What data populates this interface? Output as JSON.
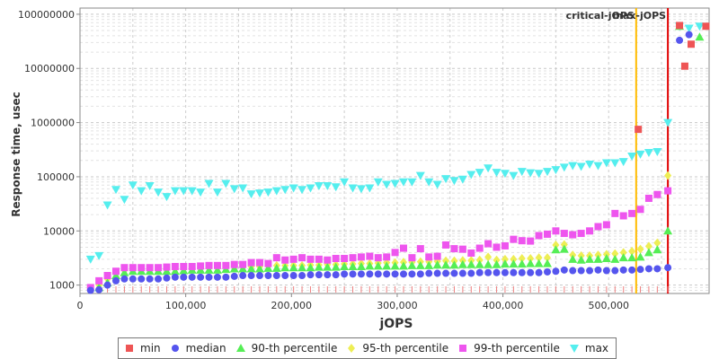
{
  "chart_data": {
    "type": "scatter",
    "xlabel": "jOPS",
    "ylabel": "Response time, usec",
    "xlim": [
      0,
      595000
    ],
    "ylim": [
      700,
      130000000
    ],
    "y_scale": "log",
    "grid": true,
    "legend_position": "bottom",
    "x_ticks": [
      0,
      100000,
      200000,
      300000,
      400000,
      500000
    ],
    "x_tick_labels": [
      "0",
      "100,000",
      "200,000",
      "300,000",
      "400,000",
      "500,000"
    ],
    "y_ticks": [
      1000,
      10000,
      100000,
      1000000,
      10000000,
      100000000
    ],
    "y_tick_labels": [
      "1000",
      "10000",
      "100000",
      "1000000",
      "10000000",
      "100000000"
    ],
    "reference_lines": [
      {
        "label": "critical-jOPS",
        "x": 526000,
        "color": "#ffbb00"
      },
      {
        "label": "max-jOPS",
        "x": 556000,
        "color": "#e00000"
      }
    ],
    "series": [
      {
        "name": "min",
        "color": "#ee5555",
        "marker": "square",
        "x": [
          528000,
          567000,
          572000,
          578000,
          592000
        ],
        "y": [
          750000,
          62000000,
          11000000,
          28000000,
          60000000
        ]
      },
      {
        "name": "median",
        "color": "#5555ee",
        "marker": "circle",
        "x": [
          10000,
          18000,
          26000,
          34000,
          42000,
          50000,
          58000,
          66000,
          74000,
          82000,
          90000,
          98000,
          106000,
          114000,
          122000,
          130000,
          138000,
          146000,
          154000,
          162000,
          170000,
          178000,
          186000,
          194000,
          202000,
          210000,
          218000,
          226000,
          234000,
          242000,
          250000,
          258000,
          266000,
          274000,
          282000,
          290000,
          298000,
          306000,
          314000,
          322000,
          330000,
          338000,
          346000,
          354000,
          362000,
          370000,
          378000,
          386000,
          394000,
          402000,
          410000,
          418000,
          426000,
          434000,
          442000,
          450000,
          458000,
          466000,
          474000,
          482000,
          490000,
          498000,
          506000,
          514000,
          522000,
          530000,
          538000,
          546000,
          556000,
          567000,
          576000
        ],
        "y": [
          800,
          820,
          1000,
          1200,
          1300,
          1300,
          1300,
          1300,
          1300,
          1350,
          1400,
          1400,
          1400,
          1400,
          1400,
          1400,
          1400,
          1450,
          1500,
          1500,
          1500,
          1500,
          1500,
          1500,
          1500,
          1500,
          1550,
          1550,
          1550,
          1550,
          1600,
          1600,
          1600,
          1600,
          1600,
          1600,
          1600,
          1600,
          1600,
          1600,
          1650,
          1650,
          1650,
          1650,
          1650,
          1650,
          1700,
          1700,
          1700,
          1700,
          1700,
          1700,
          1700,
          1700,
          1750,
          1800,
          1900,
          1850,
          1850,
          1850,
          1900,
          1850,
          1850,
          1900,
          1900,
          1950,
          2000,
          2000,
          2100,
          33000000,
          42000000
        ]
      },
      {
        "name": "90-th percentile",
        "color": "#55ee55",
        "marker": "triangle-up",
        "x": [
          18000,
          26000,
          34000,
          42000,
          50000,
          58000,
          66000,
          74000,
          82000,
          90000,
          98000,
          106000,
          114000,
          122000,
          130000,
          138000,
          146000,
          154000,
          162000,
          170000,
          178000,
          186000,
          194000,
          202000,
          210000,
          218000,
          226000,
          234000,
          242000,
          250000,
          258000,
          266000,
          274000,
          282000,
          290000,
          298000,
          306000,
          314000,
          322000,
          330000,
          338000,
          346000,
          354000,
          362000,
          370000,
          378000,
          386000,
          394000,
          402000,
          410000,
          418000,
          426000,
          434000,
          442000,
          450000,
          458000,
          466000,
          474000,
          482000,
          490000,
          498000,
          506000,
          514000,
          522000,
          530000,
          538000,
          546000,
          556000,
          567000,
          586000
        ],
        "y": [
          900,
          1100,
          1500,
          1700,
          1800,
          1800,
          1800,
          1800,
          1800,
          1800,
          1850,
          1900,
          1900,
          1900,
          1900,
          1950,
          2000,
          2000,
          2000,
          2000,
          2050,
          2050,
          2100,
          2100,
          2100,
          2100,
          2150,
          2150,
          2150,
          2200,
          2200,
          2200,
          2250,
          2250,
          2250,
          2250,
          2250,
          2300,
          2300,
          2300,
          2350,
          2350,
          2350,
          2400,
          2400,
          2400,
          2400,
          2400,
          2450,
          2450,
          2450,
          2500,
          2500,
          2500,
          4500,
          4600,
          3000,
          2900,
          3000,
          3000,
          3100,
          3000,
          3200,
          3200,
          3300,
          4000,
          4500,
          10000,
          60000000,
          38000000
        ]
      },
      {
        "name": "95-th percentile",
        "color": "#eeee55",
        "marker": "diamond",
        "x": [
          18000,
          26000,
          34000,
          42000,
          50000,
          58000,
          66000,
          74000,
          82000,
          90000,
          98000,
          106000,
          114000,
          122000,
          130000,
          138000,
          146000,
          154000,
          162000,
          170000,
          178000,
          186000,
          194000,
          202000,
          210000,
          218000,
          226000,
          234000,
          242000,
          250000,
          258000,
          266000,
          274000,
          282000,
          290000,
          298000,
          306000,
          314000,
          322000,
          330000,
          338000,
          346000,
          354000,
          362000,
          370000,
          378000,
          386000,
          394000,
          402000,
          410000,
          418000,
          426000,
          434000,
          442000,
          450000,
          458000,
          466000,
          474000,
          482000,
          490000,
          498000,
          506000,
          514000,
          522000,
          530000,
          538000,
          546000,
          556000
        ],
        "y": [
          1000,
          1300,
          1700,
          1900,
          1950,
          1950,
          2000,
          2000,
          2000,
          2000,
          2050,
          2100,
          2100,
          2100,
          2100,
          2150,
          2200,
          2200,
          2200,
          2200,
          2250,
          2300,
          2300,
          2300,
          2300,
          2350,
          2350,
          2400,
          2400,
          2450,
          2450,
          2500,
          2500,
          2550,
          2600,
          2600,
          2650,
          2650,
          2700,
          2700,
          2750,
          2800,
          2800,
          2850,
          2850,
          2900,
          3300,
          2900,
          3000,
          3000,
          3100,
          3100,
          3200,
          3200,
          5500,
          5600,
          3600,
          3500,
          3500,
          3600,
          3700,
          3800,
          4000,
          4200,
          4600,
          5200,
          6000,
          105000
        ]
      },
      {
        "name": "99-th percentile",
        "color": "#ee55ee",
        "marker": "square",
        "x": [
          10000,
          18000,
          26000,
          34000,
          42000,
          50000,
          58000,
          66000,
          74000,
          82000,
          90000,
          98000,
          106000,
          114000,
          122000,
          130000,
          138000,
          146000,
          154000,
          162000,
          170000,
          178000,
          186000,
          194000,
          202000,
          210000,
          218000,
          226000,
          234000,
          242000,
          250000,
          258000,
          266000,
          274000,
          282000,
          290000,
          298000,
          306000,
          314000,
          322000,
          330000,
          338000,
          346000,
          354000,
          362000,
          370000,
          378000,
          386000,
          394000,
          402000,
          410000,
          418000,
          426000,
          434000,
          442000,
          450000,
          458000,
          466000,
          474000,
          482000,
          490000,
          498000,
          506000,
          514000,
          522000,
          530000,
          538000,
          546000,
          556000
        ],
        "y": [
          900,
          1200,
          1500,
          1800,
          2100,
          2100,
          2100,
          2100,
          2100,
          2150,
          2200,
          2200,
          2200,
          2250,
          2300,
          2300,
          2300,
          2400,
          2400,
          2600,
          2600,
          2500,
          3200,
          2900,
          3000,
          3200,
          3000,
          3000,
          2900,
          3100,
          3100,
          3200,
          3300,
          3400,
          3200,
          3300,
          4000,
          4800,
          3200,
          4700,
          3300,
          3400,
          5500,
          4700,
          4600,
          3900,
          4800,
          5800,
          5000,
          5300,
          7000,
          6600,
          6500,
          8200,
          8700,
          10000,
          9000,
          8500,
          9000,
          10000,
          12000,
          13000,
          21000,
          19000,
          21000,
          25000,
          40000,
          47000,
          55000
        ]
      },
      {
        "name": "max",
        "color": "#55eeee",
        "marker": "triangle-down",
        "x": [
          10000,
          18000,
          26000,
          34000,
          42000,
          50000,
          58000,
          66000,
          74000,
          82000,
          90000,
          98000,
          106000,
          114000,
          122000,
          130000,
          138000,
          146000,
          154000,
          162000,
          170000,
          178000,
          186000,
          194000,
          202000,
          210000,
          218000,
          226000,
          234000,
          242000,
          250000,
          258000,
          266000,
          274000,
          282000,
          290000,
          298000,
          306000,
          314000,
          322000,
          330000,
          338000,
          346000,
          354000,
          362000,
          370000,
          378000,
          386000,
          394000,
          402000,
          410000,
          418000,
          426000,
          434000,
          442000,
          450000,
          458000,
          466000,
          474000,
          482000,
          490000,
          498000,
          506000,
          514000,
          522000,
          530000,
          538000,
          546000,
          556000,
          567000,
          576000,
          586000
        ],
        "y": [
          3000,
          3500,
          30000,
          58000,
          38000,
          70000,
          55000,
          68000,
          52000,
          43000,
          55000,
          55000,
          55000,
          52000,
          75000,
          52000,
          75000,
          60000,
          62000,
          48000,
          50000,
          52000,
          55000,
          58000,
          62000,
          58000,
          62000,
          68000,
          68000,
          65000,
          80000,
          62000,
          60000,
          62000,
          80000,
          72000,
          75000,
          80000,
          80000,
          105000,
          80000,
          72000,
          92000,
          85000,
          90000,
          110000,
          120000,
          145000,
          120000,
          115000,
          105000,
          125000,
          118000,
          115000,
          125000,
          135000,
          150000,
          160000,
          155000,
          170000,
          160000,
          180000,
          180000,
          190000,
          240000,
          260000,
          280000,
          290000,
          1000000,
          60000000,
          55000000,
          60000000
        ]
      }
    ]
  }
}
